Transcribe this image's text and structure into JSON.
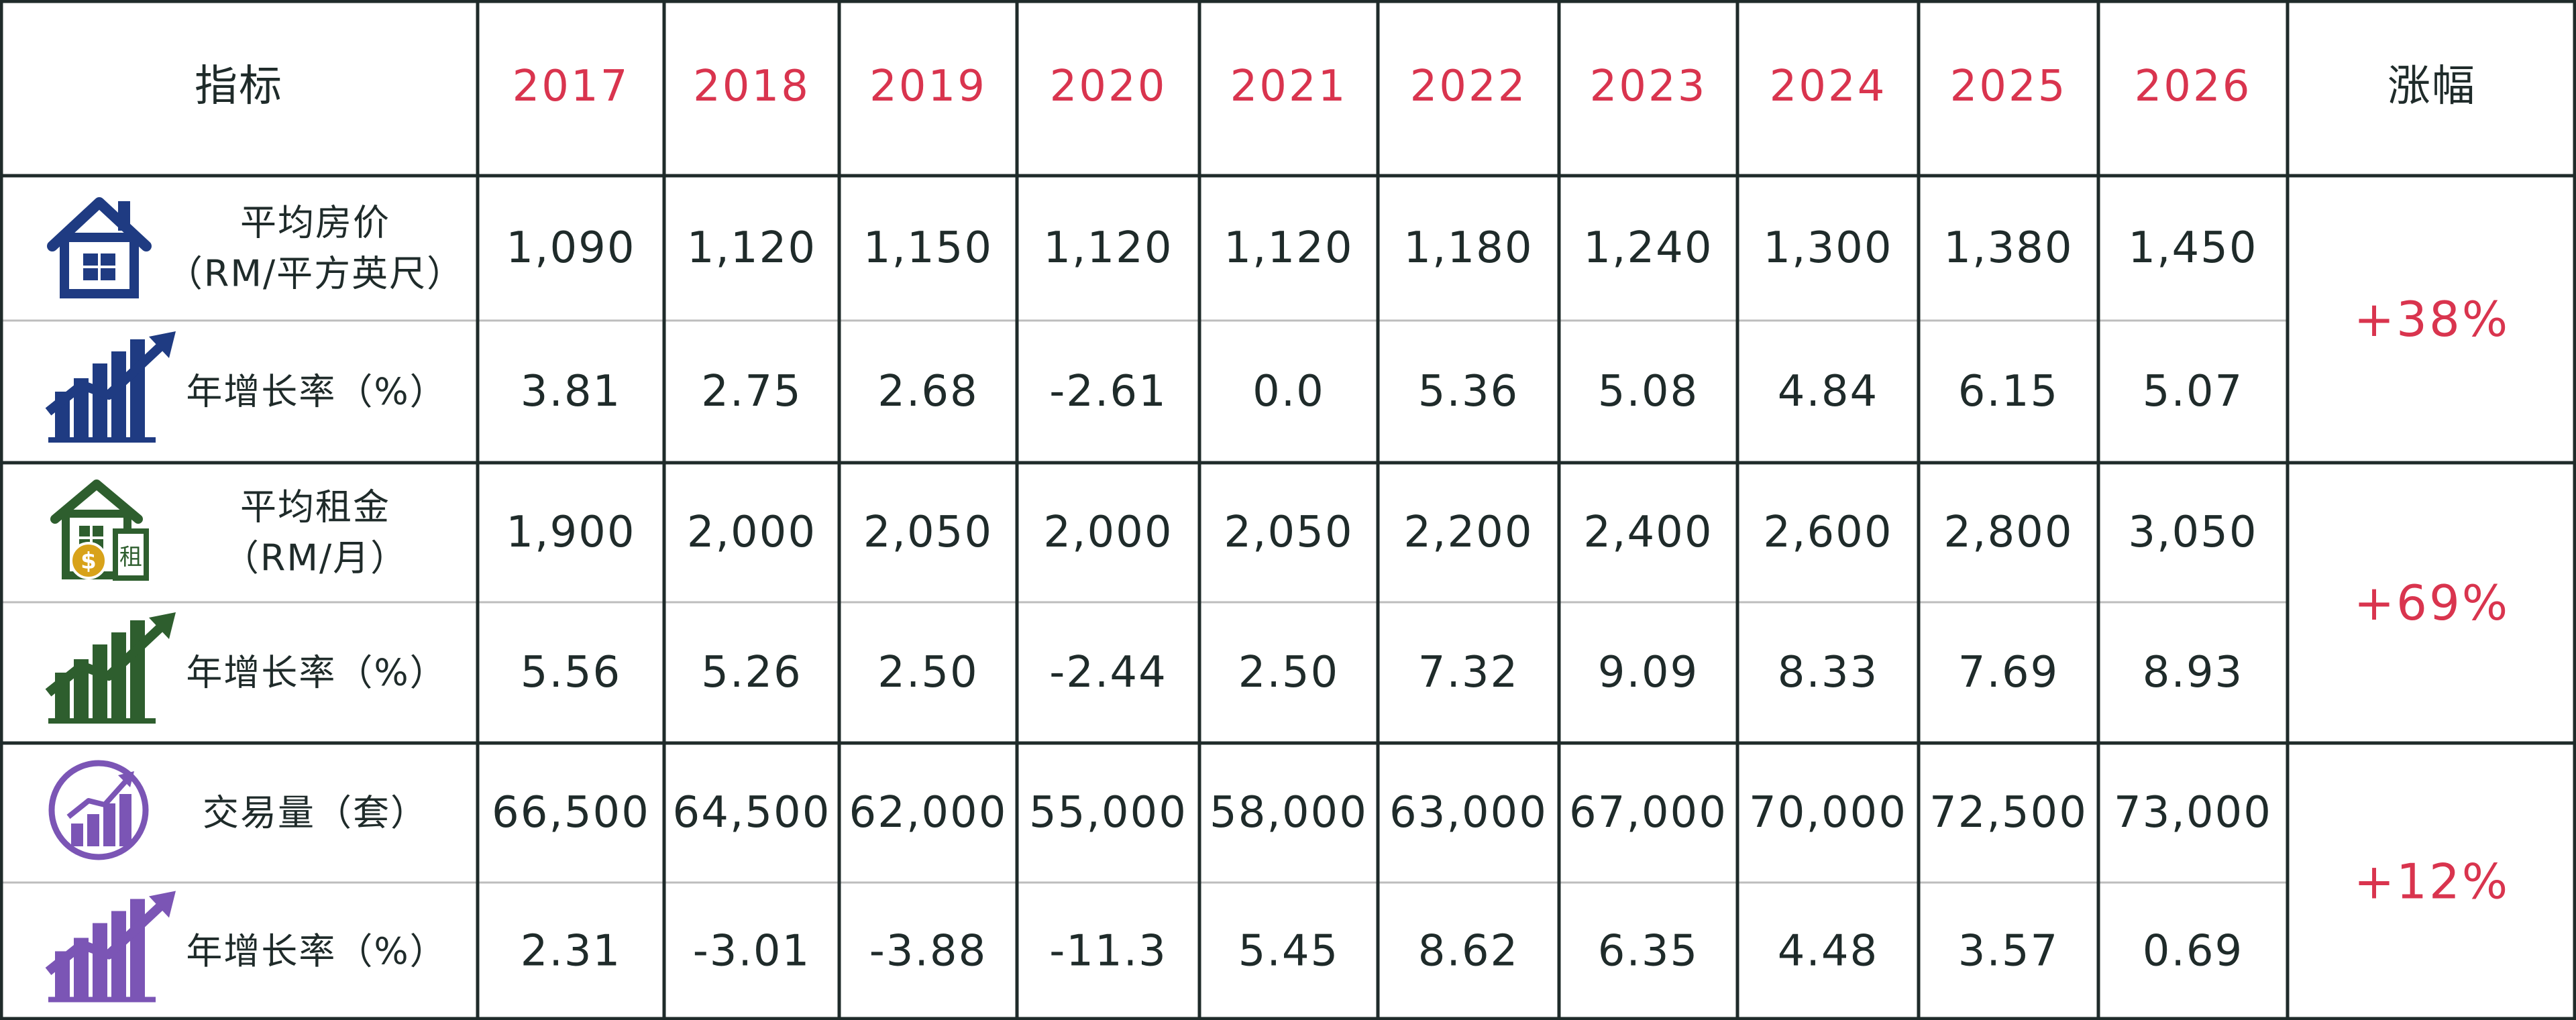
{
  "chart_data": {
    "type": "table",
    "header": {
      "indicator": "指标",
      "change": "涨幅"
    },
    "years": [
      "2017",
      "2018",
      "2019",
      "2020",
      "2021",
      "2022",
      "2023",
      "2024",
      "2025",
      "2026"
    ],
    "groups": [
      {
        "icon": "house-icon",
        "color": "#1f3b82",
        "rows": [
          {
            "label_lines": [
              "平均房价",
              "（RM/平方英尺）"
            ],
            "values": [
              "1,090",
              "1,120",
              "1,150",
              "1,120",
              "1,120",
              "1,180",
              "1,240",
              "1,300",
              "1,380",
              "1,450"
            ]
          },
          {
            "icon": "growth-chart-icon",
            "label_lines": [
              "年增长率（%）"
            ],
            "values": [
              "3.81",
              "2.75",
              "2.68",
              "-2.61",
              "0.0",
              "5.36",
              "5.08",
              "4.84",
              "6.15",
              "5.07"
            ]
          }
        ],
        "change": "+38%"
      },
      {
        "icon": "rent-house-icon",
        "color": "#2e5e2e",
        "rent_glyph": "租",
        "rows": [
          {
            "label_lines": [
              "平均租金",
              "（RM/月）"
            ],
            "values": [
              "1,900",
              "2,000",
              "2,050",
              "2,000",
              "2,050",
              "2,200",
              "2,400",
              "2,600",
              "2,800",
              "3,050"
            ]
          },
          {
            "icon": "growth-chart-icon",
            "label_lines": [
              "年增长率（%）"
            ],
            "values": [
              "5.56",
              "5.26",
              "2.50",
              "-2.44",
              "2.50",
              "7.32",
              "9.09",
              "8.33",
              "7.69",
              "8.93"
            ]
          }
        ],
        "change": "+69%"
      },
      {
        "icon": "transaction-circle-icon",
        "color": "#7b55b5",
        "rows": [
          {
            "label_lines": [
              "交易量（套）"
            ],
            "values": [
              "66,500",
              "64,500",
              "62,000",
              "55,000",
              "58,000",
              "63,000",
              "67,000",
              "70,000",
              "72,500",
              "73,000"
            ]
          },
          {
            "icon": "growth-chart-icon",
            "label_lines": [
              "年增长率（%）"
            ],
            "values": [
              "2.31",
              "-3.01",
              "-3.88",
              "-11.3",
              "5.45",
              "8.62",
              "6.35",
              "4.48",
              "3.57",
              "0.69"
            ]
          }
        ],
        "change": "+12%"
      }
    ]
  }
}
